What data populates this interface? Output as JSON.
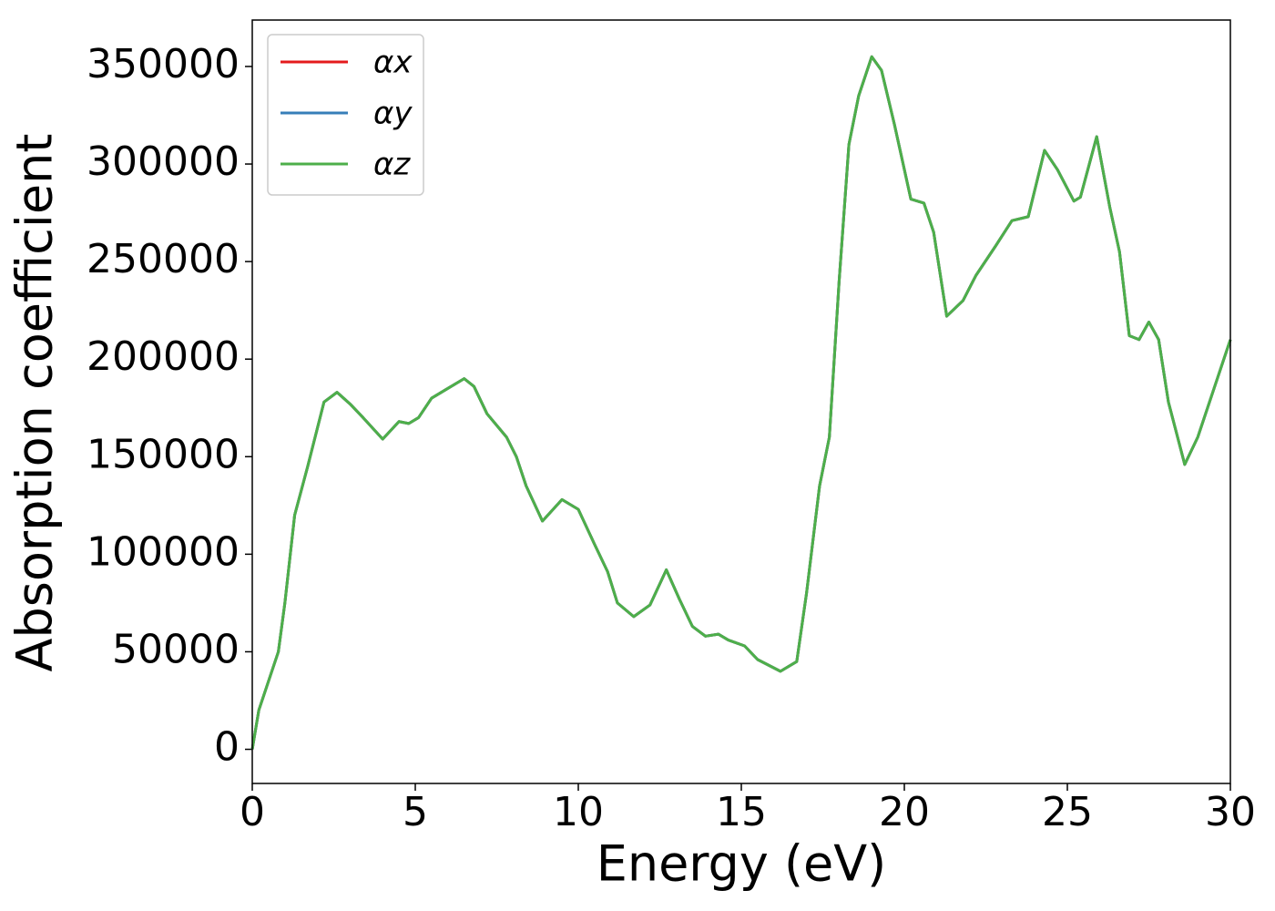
{
  "chart_data": {
    "type": "line",
    "xlabel": "Energy (eV)",
    "ylabel": "Absorption coefficient",
    "x": [
      0,
      0.2,
      0.5,
      0.8,
      1.0,
      1.3,
      1.7,
      2.2,
      2.6,
      3.0,
      3.4,
      4.0,
      4.5,
      4.8,
      5.1,
      5.5,
      6.0,
      6.5,
      6.8,
      7.2,
      7.8,
      8.1,
      8.4,
      8.9,
      9.5,
      10.0,
      10.5,
      10.9,
      11.2,
      11.7,
      12.2,
      12.7,
      13.1,
      13.5,
      13.9,
      14.3,
      14.6,
      15.1,
      15.5,
      16.2,
      16.7,
      17.0,
      17.4,
      17.7,
      18.0,
      18.3,
      18.6,
      19.0,
      19.3,
      19.7,
      20.2,
      20.6,
      20.9,
      21.3,
      21.8,
      22.2,
      22.8,
      23.3,
      23.8,
      24.3,
      24.7,
      25.2,
      25.4,
      25.9,
      26.3,
      26.6,
      26.9,
      27.2,
      27.5,
      27.8,
      28.1,
      28.6,
      29.0,
      29.5,
      30.0
    ],
    "series": [
      {
        "name": "αx",
        "color": "#e41a1c",
        "values": [
          0,
          20000,
          35000,
          50000,
          75000,
          120000,
          145000,
          178000,
          183000,
          177000,
          170000,
          159000,
          168000,
          167000,
          170000,
          180000,
          185000,
          190000,
          186000,
          172000,
          160000,
          150000,
          135000,
          117000,
          128000,
          123000,
          105000,
          91000,
          75000,
          68000,
          74000,
          92000,
          77000,
          63000,
          58000,
          59000,
          56000,
          53000,
          46000,
          40000,
          45000,
          80000,
          135000,
          160000,
          240000,
          310000,
          335000,
          355000,
          348000,
          320000,
          282000,
          280000,
          265000,
          222000,
          230000,
          243000,
          258000,
          271000,
          273000,
          307000,
          297000,
          281000,
          283000,
          314000,
          278000,
          255000,
          212000,
          210000,
          219000,
          210000,
          178000,
          146000,
          160000,
          185000,
          210000
        ]
      },
      {
        "name": "αy",
        "color": "#377eb8",
        "values": [
          0,
          20000,
          35000,
          50000,
          75000,
          120000,
          145000,
          178000,
          183000,
          177000,
          170000,
          159000,
          168000,
          167000,
          170000,
          180000,
          185000,
          190000,
          186000,
          172000,
          160000,
          150000,
          135000,
          117000,
          128000,
          123000,
          105000,
          91000,
          75000,
          68000,
          74000,
          92000,
          77000,
          63000,
          58000,
          59000,
          56000,
          53000,
          46000,
          40000,
          45000,
          80000,
          135000,
          160000,
          240000,
          310000,
          335000,
          355000,
          348000,
          320000,
          282000,
          280000,
          265000,
          222000,
          230000,
          243000,
          258000,
          271000,
          273000,
          307000,
          297000,
          281000,
          283000,
          314000,
          278000,
          255000,
          212000,
          210000,
          219000,
          210000,
          178000,
          146000,
          160000,
          185000,
          210000
        ]
      },
      {
        "name": "αz",
        "color": "#4daf4a",
        "values": [
          0,
          20000,
          35000,
          50000,
          75000,
          120000,
          145000,
          178000,
          183000,
          177000,
          170000,
          159000,
          168000,
          167000,
          170000,
          180000,
          185000,
          190000,
          186000,
          172000,
          160000,
          150000,
          135000,
          117000,
          128000,
          123000,
          105000,
          91000,
          75000,
          68000,
          74000,
          92000,
          77000,
          63000,
          58000,
          59000,
          56000,
          53000,
          46000,
          40000,
          45000,
          80000,
          135000,
          160000,
          240000,
          310000,
          335000,
          355000,
          348000,
          320000,
          282000,
          280000,
          265000,
          222000,
          230000,
          243000,
          258000,
          271000,
          273000,
          307000,
          297000,
          281000,
          283000,
          314000,
          278000,
          255000,
          212000,
          210000,
          219000,
          210000,
          178000,
          146000,
          160000,
          185000,
          210000
        ]
      }
    ],
    "xlim": [
      0,
      30
    ],
    "xticks": [
      0,
      5,
      10,
      15,
      20,
      25,
      30
    ],
    "ylim": [
      -17500,
      373800
    ],
    "yticks": [
      0,
      50000,
      100000,
      150000,
      200000,
      250000,
      300000,
      350000
    ],
    "legend": "upper left"
  }
}
